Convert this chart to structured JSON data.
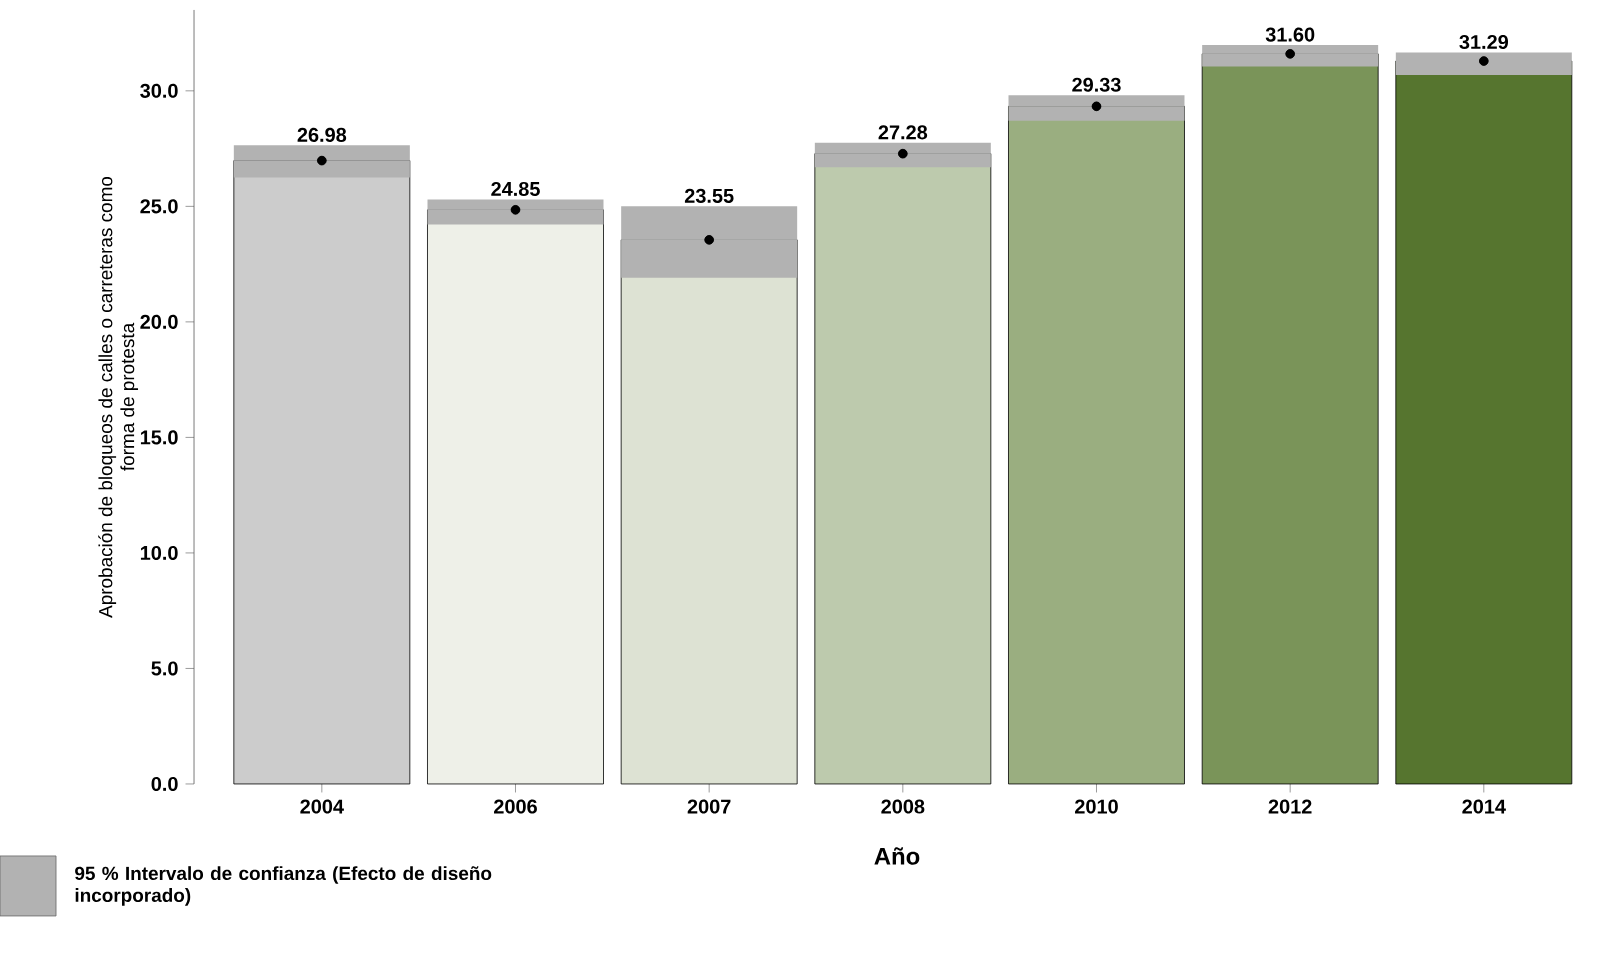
{
  "chart_data": {
    "type": "bar",
    "categories": [
      "2004",
      "2006",
      "2007",
      "2008",
      "2010",
      "2012",
      "2014"
    ],
    "series": [
      {
        "values": [
          26.98,
          24.85,
          23.55,
          27.28,
          29.33,
          31.6,
          31.29
        ],
        "colors": [
          "#cccccc",
          "#eef0e8",
          "#dde2d3",
          "#bdcaad",
          "#9aae80",
          "#7a9459",
          "#56752f"
        ],
        "value_labels": [
          "26.98",
          "24.85",
          "23.55",
          "27.28",
          "29.33",
          "31.60",
          "31.29"
        ]
      },
      {
        "type": "scatter",
        "values": [
          26.98,
          24.85,
          23.55,
          27.28,
          29.33,
          31.6,
          31.29
        ],
        "color": "#000000",
        "marker": "circle",
        "errors": [
          [
            26.25,
            27.64
          ],
          [
            24.22,
            25.3
          ],
          [
            21.91,
            25.0
          ],
          [
            26.69,
            27.75
          ],
          [
            28.71,
            29.81
          ],
          [
            31.05,
            31.98
          ],
          [
            30.68,
            31.66
          ]
        ]
      }
    ],
    "ylim": [
      0,
      33.5
    ],
    "yticks": [
      {
        "value": 0,
        "label": "0.0"
      },
      {
        "value": 5,
        "label": "5.0"
      },
      {
        "value": 10,
        "label": "10.0"
      },
      {
        "value": 15,
        "label": "15.0"
      },
      {
        "value": 20,
        "label": "20.0"
      },
      {
        "value": 25,
        "label": "25.0"
      },
      {
        "value": 30,
        "label": "30.0"
      }
    ],
    "xlabel": "Año",
    "ylabel": "Aprobación de bloqueos de calles o carreteras como forma de protesta",
    "annotations": [
      "95 % Intervalo de confianza (Efecto de diseño incorporado)"
    ]
  }
}
